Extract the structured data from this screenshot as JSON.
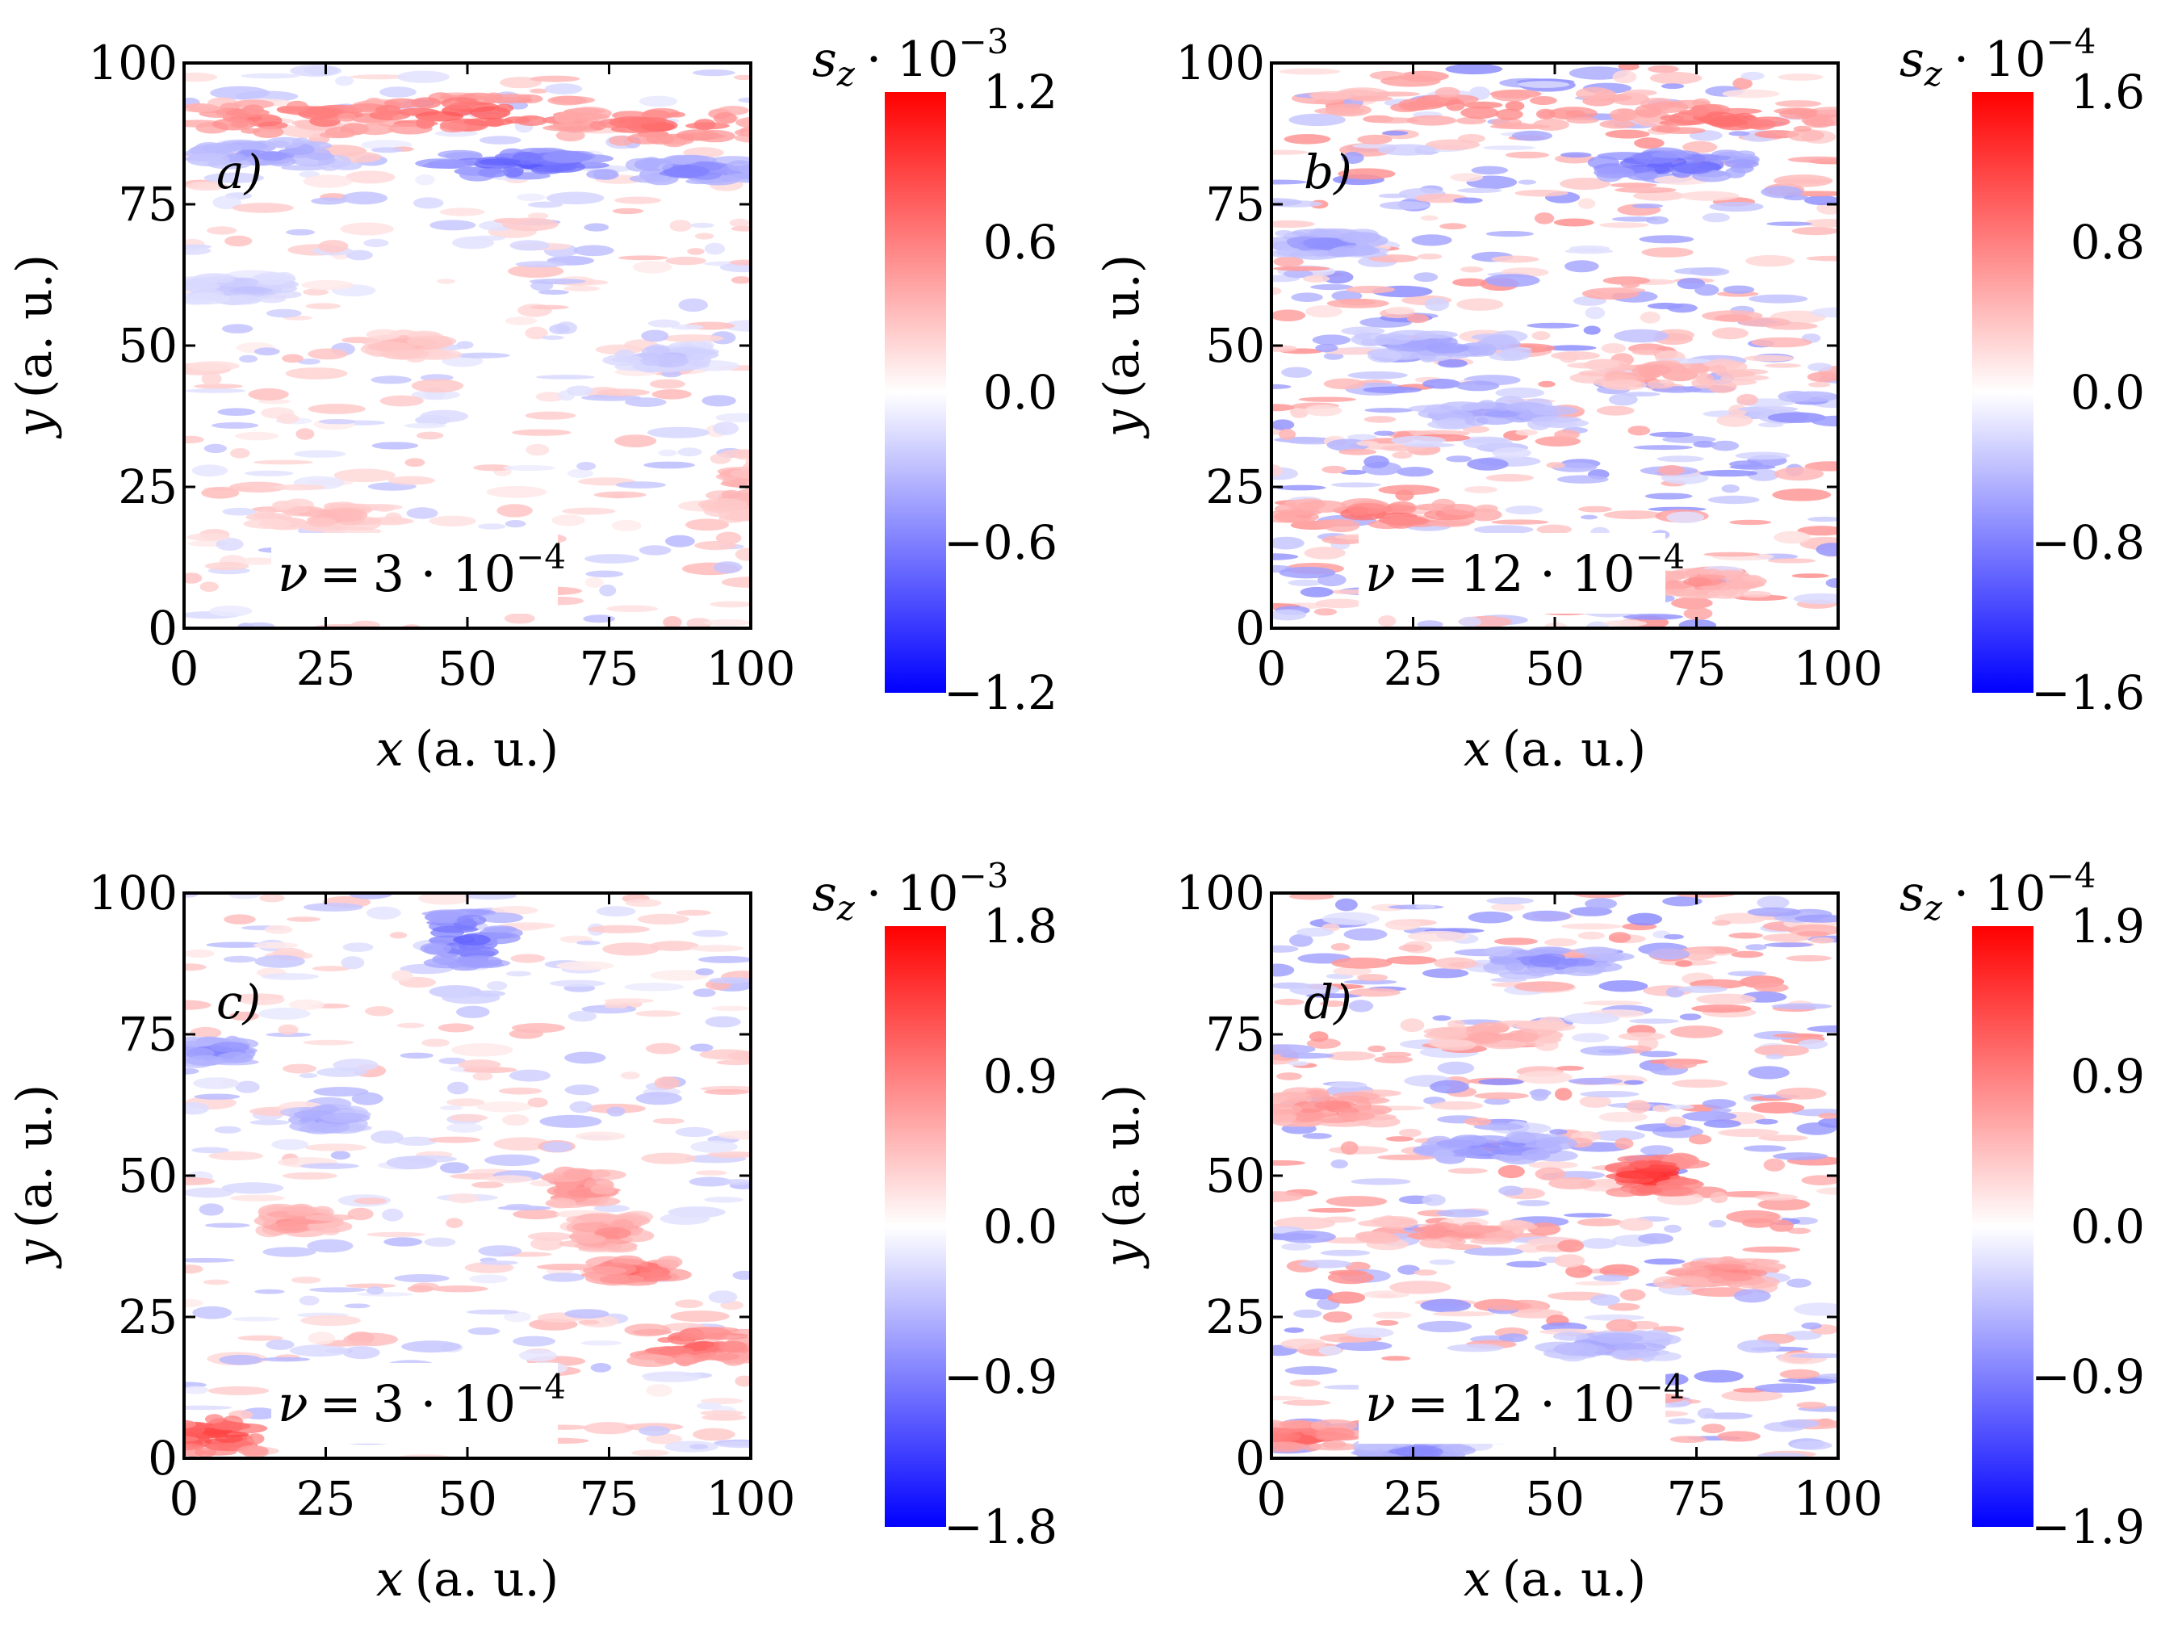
{
  "chart_data": [
    {
      "type": "heatmap",
      "panel_label": "a)",
      "annotation": {
        "symbol": "ν",
        "equals": "=",
        "value": "3 · 10",
        "exp": "−4"
      },
      "xlabel": {
        "var": "x",
        "unit": "(a. u.)"
      },
      "ylabel": {
        "var": "y",
        "unit": "(a. u.)"
      },
      "xlim": [
        0,
        100
      ],
      "ylim": [
        0,
        100
      ],
      "x_ticks": [
        "0",
        "25",
        "50",
        "75",
        "100"
      ],
      "y_ticks": [
        "0",
        "25",
        "50",
        "75",
        "100"
      ],
      "colorbar": {
        "title_var": "s",
        "title_sub": "z",
        "title_mult": "· 10",
        "title_exp": "−3",
        "range": [
          -1.2,
          1.2
        ],
        "ticks": [
          "1.2",
          "0.6",
          "0.0",
          "−0.6",
          "−1.2"
        ],
        "colormap": [
          "#0000ff",
          "#ffffff",
          "#ff0000"
        ]
      },
      "features": [
        {
          "x": 20,
          "y": 90,
          "v": 0.7,
          "wx": 18,
          "wy": 3
        },
        {
          "x": 50,
          "y": 91,
          "v": 0.8,
          "wx": 22,
          "wy": 3
        },
        {
          "x": 85,
          "y": 89,
          "v": 0.7,
          "wx": 18,
          "wy": 3
        },
        {
          "x": 15,
          "y": 84,
          "v": -0.5,
          "wx": 12,
          "wy": 2
        },
        {
          "x": 60,
          "y": 82,
          "v": -0.8,
          "wx": 15,
          "wy": 2
        },
        {
          "x": 90,
          "y": 81,
          "v": -0.6,
          "wx": 10,
          "wy": 2
        },
        {
          "x": 10,
          "y": 60,
          "v": -0.3,
          "wx": 8,
          "wy": 2
        },
        {
          "x": 40,
          "y": 50,
          "v": 0.35,
          "wx": 6,
          "wy": 2
        },
        {
          "x": 85,
          "y": 48,
          "v": -0.3,
          "wx": 8,
          "wy": 2
        },
        {
          "x": 25,
          "y": 20,
          "v": 0.35,
          "wx": 12,
          "wy": 2
        },
        {
          "x": 98,
          "y": 25,
          "v": 0.4,
          "wx": 4,
          "wy": 6
        }
      ]
    },
    {
      "type": "heatmap",
      "panel_label": "b)",
      "annotation": {
        "symbol": "ν",
        "equals": "=",
        "value": "12 · 10",
        "exp": "−4"
      },
      "xlabel": {
        "var": "x",
        "unit": "(a. u.)"
      },
      "ylabel": {
        "var": "y",
        "unit": "(a. u.)"
      },
      "xlim": [
        0,
        100
      ],
      "ylim": [
        0,
        100
      ],
      "x_ticks": [
        "0",
        "25",
        "50",
        "75",
        "100"
      ],
      "y_ticks": [
        "0",
        "25",
        "50",
        "75",
        "100"
      ],
      "colorbar": {
        "title_var": "s",
        "title_sub": "z",
        "title_mult": "· 10",
        "title_exp": "−4",
        "range": [
          -1.6,
          1.6
        ],
        "ticks": [
          "1.6",
          "0.8",
          "0.0",
          "−0.8",
          "−1.6"
        ],
        "colormap": [
          "#0000ff",
          "#ffffff",
          "#ff0000"
        ]
      },
      "features": [
        {
          "x": 40,
          "y": 92,
          "v": 0.8,
          "wx": 30,
          "wy": 3
        },
        {
          "x": 80,
          "y": 90,
          "v": 0.9,
          "wx": 20,
          "wy": 3
        },
        {
          "x": 70,
          "y": 82,
          "v": -1.0,
          "wx": 14,
          "wy": 2
        },
        {
          "x": 10,
          "y": 68,
          "v": -0.7,
          "wx": 8,
          "wy": 2
        },
        {
          "x": 30,
          "y": 50,
          "v": -0.6,
          "wx": 14,
          "wy": 2
        },
        {
          "x": 70,
          "y": 45,
          "v": 0.6,
          "wx": 14,
          "wy": 2
        },
        {
          "x": 40,
          "y": 38,
          "v": -0.6,
          "wx": 12,
          "wy": 2
        },
        {
          "x": 20,
          "y": 20,
          "v": 0.9,
          "wx": 18,
          "wy": 2
        },
        {
          "x": 75,
          "y": 8,
          "v": 0.7,
          "wx": 10,
          "wy": 2
        }
      ]
    },
    {
      "type": "heatmap",
      "panel_label": "c)",
      "annotation": {
        "symbol": "ν",
        "equals": "=",
        "value": "3 · 10",
        "exp": "−4"
      },
      "xlabel": {
        "var": "x",
        "unit": "(a. u.)"
      },
      "ylabel": {
        "var": "y",
        "unit": "(a. u.)"
      },
      "xlim": [
        0,
        100
      ],
      "ylim": [
        0,
        100
      ],
      "x_ticks": [
        "0",
        "25",
        "50",
        "75",
        "100"
      ],
      "y_ticks": [
        "0",
        "25",
        "50",
        "75",
        "100"
      ],
      "colorbar": {
        "title_var": "s",
        "title_sub": "z",
        "title_mult": "· 10",
        "title_exp": "−3",
        "range": [
          -1.8,
          1.8
        ],
        "ticks": [
          "1.8",
          "0.9",
          "0.0",
          "−0.9",
          "−1.8"
        ],
        "colormap": [
          "#0000ff",
          "#ffffff",
          "#ff0000"
        ]
      },
      "features": [
        {
          "x": 50,
          "y": 92,
          "v": -1.1,
          "wx": 6,
          "wy": 5
        },
        {
          "x": 6,
          "y": 72,
          "v": -0.9,
          "wx": 5,
          "wy": 2
        },
        {
          "x": 25,
          "y": 60,
          "v": -0.7,
          "wx": 5,
          "wy": 2
        },
        {
          "x": 70,
          "y": 48,
          "v": 0.9,
          "wx": 4,
          "wy": 3
        },
        {
          "x": 75,
          "y": 40,
          "v": 0.8,
          "wx": 5,
          "wy": 3
        },
        {
          "x": 80,
          "y": 33,
          "v": 1.1,
          "wx": 6,
          "wy": 2
        },
        {
          "x": 90,
          "y": 20,
          "v": 1.1,
          "wx": 10,
          "wy": 3
        },
        {
          "x": 20,
          "y": 42,
          "v": 0.8,
          "wx": 6,
          "wy": 2
        },
        {
          "x": 5,
          "y": 4,
          "v": 1.4,
          "wx": 8,
          "wy": 3
        }
      ]
    },
    {
      "type": "heatmap",
      "panel_label": "d)",
      "annotation": {
        "symbol": "ν",
        "equals": "=",
        "value": "12 · 10",
        "exp": "−4"
      },
      "xlabel": {
        "var": "x",
        "unit": "(a. u.)"
      },
      "ylabel": {
        "var": "y",
        "unit": "(a. u.)"
      },
      "xlim": [
        0,
        100
      ],
      "ylim": [
        0,
        100
      ],
      "x_ticks": [
        "0",
        "25",
        "50",
        "75",
        "100"
      ],
      "y_ticks": [
        "0",
        "25",
        "50",
        "75",
        "100"
      ],
      "colorbar": {
        "title_var": "s",
        "title_sub": "z",
        "title_mult": "· 10",
        "title_exp": "−4",
        "range": [
          -1.9,
          1.9
        ],
        "ticks": [
          "1.9",
          "0.9",
          "0.0",
          "−0.9",
          "−1.9"
        ],
        "colormap": [
          "#0000ff",
          "#ffffff",
          "#ff0000"
        ]
      },
      "features": [
        {
          "x": 50,
          "y": 88,
          "v": -0.9,
          "wx": 10,
          "wy": 2
        },
        {
          "x": 40,
          "y": 75,
          "v": 0.7,
          "wx": 10,
          "wy": 2
        },
        {
          "x": 10,
          "y": 62,
          "v": 0.9,
          "wx": 10,
          "wy": 3
        },
        {
          "x": 40,
          "y": 55,
          "v": -0.9,
          "wx": 12,
          "wy": 2
        },
        {
          "x": 67,
          "y": 50,
          "v": 1.6,
          "wx": 6,
          "wy": 3
        },
        {
          "x": 30,
          "y": 40,
          "v": 0.8,
          "wx": 14,
          "wy": 2
        },
        {
          "x": 80,
          "y": 33,
          "v": 0.9,
          "wx": 10,
          "wy": 2
        },
        {
          "x": 60,
          "y": 20,
          "v": -0.7,
          "wx": 10,
          "wy": 2
        },
        {
          "x": 5,
          "y": 4,
          "v": 1.2,
          "wx": 8,
          "wy": 2
        },
        {
          "x": 25,
          "y": 1,
          "v": -0.9,
          "wx": 8,
          "wy": 1.5
        }
      ]
    }
  ]
}
